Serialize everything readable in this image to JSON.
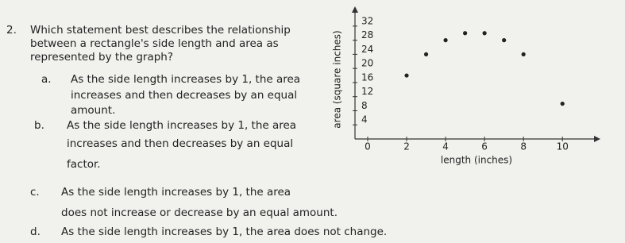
{
  "question": {
    "number": "2.",
    "stem": [
      "Which statement best describes the relationship",
      "between a rectangle's side length and area as",
      "represented by the graph?"
    ]
  },
  "options": [
    {
      "letter": "a.",
      "lines": [
        "As the side length increases by 1, the area",
        "increases and then decreases by an equal",
        "amount."
      ]
    },
    {
      "letter": "b.",
      "lines": [
        "As the side length increases by 1, the area",
        "increases and then decreases by an equal",
        "factor."
      ]
    },
    {
      "letter": "c.",
      "lines": [
        "As the side length increases by 1, the area",
        "does not increase or decrease by an equal amount."
      ]
    },
    {
      "letter": "d.",
      "lines": [
        "As the side length increases by 1, the area does not change."
      ]
    }
  ],
  "graph": {
    "type": "scatter",
    "x_label": "length (inches)",
    "y_label": "area (square inches)",
    "x": [
      2,
      3,
      4,
      5,
      6,
      7,
      8,
      10
    ],
    "y": [
      18,
      24,
      28,
      30,
      30,
      28,
      24,
      10
    ],
    "xlim": [
      0,
      11.5
    ],
    "ylim": [
      0,
      34
    ],
    "xticks": [
      0,
      2,
      4,
      6,
      8,
      10
    ],
    "yticks": [
      4,
      8,
      12,
      16,
      20,
      24,
      28,
      32
    ],
    "color": "#222222"
  }
}
